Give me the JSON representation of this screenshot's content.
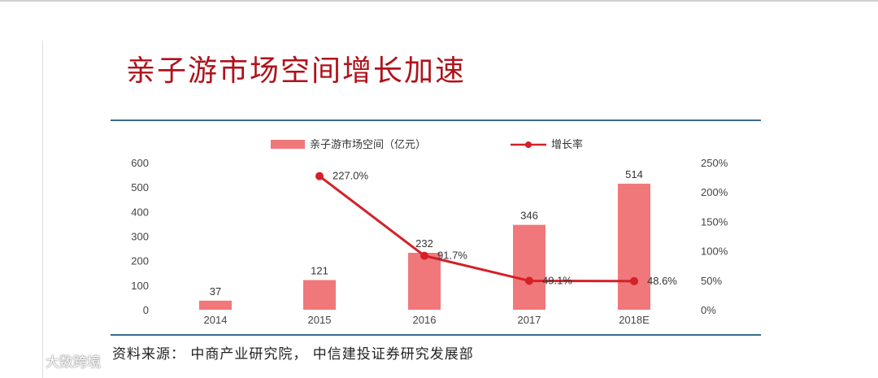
{
  "slide": {
    "title": "亲子游市场空间增长加速",
    "source": "资料来源： 中商产业研究院， 中信建投证券研究发展部",
    "watermark": "大数跨境"
  },
  "colors": {
    "bar": "#f0787a",
    "line": "#d42028",
    "title": "#b0121b",
    "rule": "#3a6b8c"
  },
  "chart_data": {
    "type": "bar",
    "categories": [
      "2014",
      "2015",
      "2016",
      "2017",
      "2018E"
    ],
    "series": [
      {
        "name": "亲子游市场空间（亿元）",
        "type": "bar",
        "axis": "left",
        "values": [
          37,
          121,
          232,
          346,
          514
        ],
        "labels": [
          "37",
          "121",
          "232",
          "346",
          "514"
        ]
      },
      {
        "name": "增长率",
        "type": "line",
        "axis": "right",
        "values": [
          null,
          227.0,
          91.7,
          49.1,
          48.6
        ],
        "labels": [
          "",
          "227.0%",
          "91.7%",
          "49.1%",
          "48.6%"
        ]
      }
    ],
    "left_axis": {
      "ylim": [
        0,
        600
      ],
      "ticks": [
        "0",
        "100",
        "200",
        "300",
        "400",
        "500",
        "600"
      ]
    },
    "right_axis": {
      "ylim": [
        0,
        250
      ],
      "ticks": [
        "0%",
        "50%",
        "100%",
        "150%",
        "200%",
        "250%"
      ]
    },
    "legend_position": "top",
    "grid": false
  }
}
